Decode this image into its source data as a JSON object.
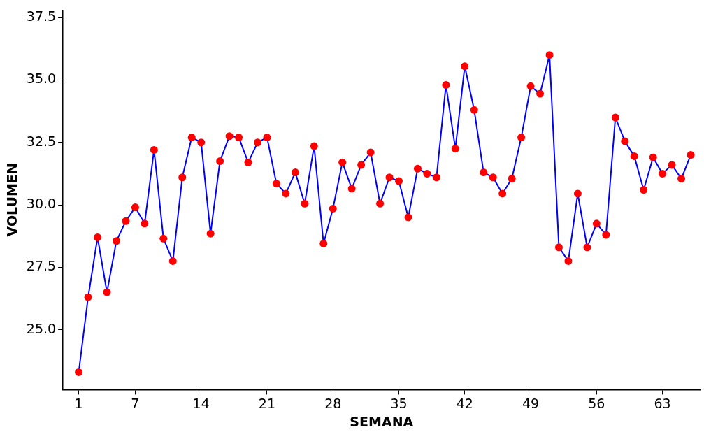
{
  "chart_data": {
    "type": "line",
    "xlabel": "SEMANA",
    "ylabel": "VOLUMEN",
    "color": "#0000ff",
    "marker": "circle",
    "colors": [
      "#ff0000",
      "#ff0000",
      "#ff0000",
      "#ff0000",
      "#ff0000",
      "#ff0000",
      "#ff0000",
      "#ff0000",
      "#ff0000",
      "#ff0000",
      "#ff0000",
      "#ff0000",
      "#ff0000",
      "#ff0000",
      "#ff0000",
      "#ff0000",
      "#ff0000",
      "#ff0000",
      "#ff0000",
      "#ff0000",
      "#ff0000",
      "#ff0000",
      "#ff0000",
      "#ff0000",
      "#ff0000",
      "#ff0000",
      "#ff0000",
      "#ff0000",
      "#ff0000",
      "#ff0000",
      "#ff0000",
      "#ff0000",
      "#ff0000",
      "#ff0000",
      "#ff0000",
      "#ff0000",
      "#ff0000",
      "#ff0000",
      "#ff0000",
      "#ff0000",
      "#ff0000",
      "#ff0000",
      "#ff0000",
      "#ff0000",
      "#ff0000",
      "#ff0000",
      "#ff0000",
      "#ff0000",
      "#ff0000",
      "#ff0000",
      "#ff0000",
      "#ff0000",
      "#ff0000",
      "#ff0000",
      "#ff0000",
      "#ff0000",
      "#ff0000",
      "#ff0000",
      "#ff0000",
      "#ff0000",
      "#ff0000",
      "#ff0000",
      "#ff0000",
      "#ff0000",
      "#ff0000",
      "#ff0000"
    ],
    "grid": false,
    "legend": false,
    "x": [
      1,
      2,
      3,
      4,
      5,
      6,
      7,
      8,
      9,
      10,
      11,
      12,
      13,
      14,
      15,
      16,
      17,
      18,
      19,
      20,
      21,
      22,
      23,
      24,
      25,
      26,
      27,
      28,
      29,
      30,
      31,
      32,
      33,
      34,
      35,
      36,
      37,
      38,
      39,
      40,
      41,
      42,
      43,
      44,
      45,
      46,
      47,
      48,
      49,
      50,
      51,
      52,
      53,
      54,
      55,
      56,
      57,
      58,
      59,
      60,
      61,
      62,
      63,
      64,
      65,
      66
    ],
    "values": [
      23.3,
      26.3,
      28.7,
      26.5,
      28.55,
      29.35,
      29.9,
      29.25,
      32.2,
      28.65,
      27.75,
      31.1,
      32.7,
      32.5,
      28.85,
      31.75,
      32.75,
      32.7,
      31.7,
      32.5,
      32.7,
      30.85,
      30.45,
      31.3,
      30.05,
      32.35,
      28.45,
      29.85,
      31.7,
      30.65,
      31.6,
      32.1,
      30.05,
      31.1,
      30.95,
      29.5,
      31.45,
      31.25,
      31.1,
      34.8,
      32.25,
      35.55,
      33.8,
      31.3,
      31.1,
      30.45,
      31.05,
      32.7,
      34.75,
      34.45,
      36.0,
      28.3,
      27.75,
      30.45,
      28.3,
      29.25,
      28.8,
      33.5,
      32.55,
      31.95,
      30.6,
      31.9,
      31.25,
      31.6,
      31.05,
      32.0
    ],
    "xlim": [
      -0.67,
      67
    ],
    "xticks": [
      1,
      7,
      14,
      21,
      28,
      35,
      42,
      49,
      56,
      63
    ],
    "ylim": [
      22.6,
      37.8
    ],
    "yticks": [
      {
        "value": 25,
        "label": "25.0"
      },
      {
        "value": 27.5,
        "label": "27.5"
      },
      {
        "value": 30,
        "label": "30.0"
      },
      {
        "value": 32.5,
        "label": "32.5"
      },
      {
        "value": 35,
        "label": "35.0"
      },
      {
        "value": 37.5,
        "label": "37.5"
      }
    ]
  }
}
